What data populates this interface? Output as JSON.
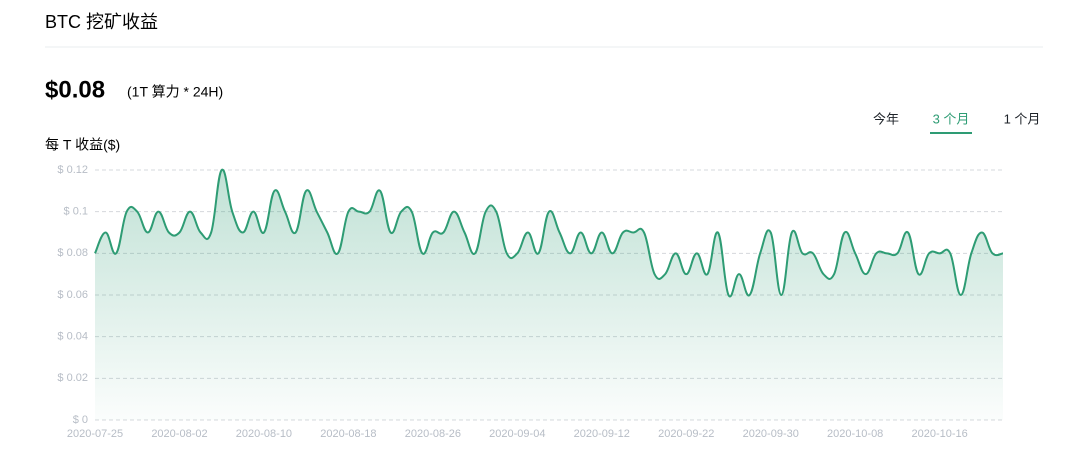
{
  "header": {
    "title": "BTC 挖矿收益"
  },
  "summary": {
    "value": "$0.08",
    "note": "(1T 算力 * 24H)"
  },
  "tabs": [
    "今年",
    "3 个月",
    "1 个月"
  ],
  "active_tab": 1,
  "chart_data": {
    "type": "line",
    "y_label": "每 T 收益($)",
    "color": "#2e9c74",
    "grid": true,
    "ylim": [
      0,
      0.12
    ],
    "yticks": [
      {
        "value": 0,
        "label": "$ 0"
      },
      {
        "value": 0.02,
        "label": "$ 0.02"
      },
      {
        "value": 0.04,
        "label": "$ 0.04"
      },
      {
        "value": 0.06,
        "label": "$ 0.06"
      },
      {
        "value": 0.08,
        "label": "$ 0.08"
      },
      {
        "value": 0.1,
        "label": "$ 0.1"
      },
      {
        "value": 0.12,
        "label": "$ 0.12"
      }
    ],
    "categories": [
      "2020-07-25",
      null,
      null,
      null,
      null,
      null,
      null,
      null,
      "2020-08-02",
      null,
      null,
      null,
      null,
      null,
      null,
      null,
      "2020-08-10",
      null,
      null,
      null,
      null,
      null,
      null,
      null,
      "2020-08-18",
      null,
      null,
      null,
      null,
      null,
      null,
      null,
      "2020-08-26",
      null,
      null,
      null,
      null,
      null,
      null,
      null,
      "2020-09-04",
      null,
      null,
      null,
      null,
      null,
      null,
      null,
      "2020-09-12",
      null,
      null,
      null,
      null,
      null,
      null,
      null,
      "2020-09-22",
      null,
      null,
      null,
      null,
      null,
      null,
      null,
      "2020-09-30",
      null,
      null,
      null,
      null,
      null,
      null,
      null,
      "2020-10-08",
      null,
      null,
      null,
      null,
      null,
      null,
      null,
      "2020-10-16",
      null,
      null,
      null,
      null,
      null,
      null
    ],
    "values": [
      0.08,
      0.09,
      0.08,
      0.1,
      0.1,
      0.09,
      0.1,
      0.09,
      0.09,
      0.1,
      0.09,
      0.09,
      0.12,
      0.1,
      0.09,
      0.1,
      0.09,
      0.11,
      0.1,
      0.09,
      0.11,
      0.1,
      0.09,
      0.08,
      0.1,
      0.1,
      0.1,
      0.11,
      0.09,
      0.1,
      0.1,
      0.08,
      0.09,
      0.09,
      0.1,
      0.09,
      0.08,
      0.1,
      0.1,
      0.08,
      0.08,
      0.09,
      0.08,
      0.1,
      0.09,
      0.08,
      0.09,
      0.08,
      0.09,
      0.08,
      0.09,
      0.09,
      0.09,
      0.07,
      0.07,
      0.08,
      0.07,
      0.08,
      0.07,
      0.09,
      0.06,
      0.07,
      0.06,
      0.08,
      0.09,
      0.06,
      0.09,
      0.08,
      0.08,
      0.07,
      0.07,
      0.09,
      0.08,
      0.07,
      0.08,
      0.08,
      0.08,
      0.09,
      0.07,
      0.08,
      0.08,
      0.08,
      0.06,
      0.08,
      0.09,
      0.08,
      0.08
    ]
  }
}
